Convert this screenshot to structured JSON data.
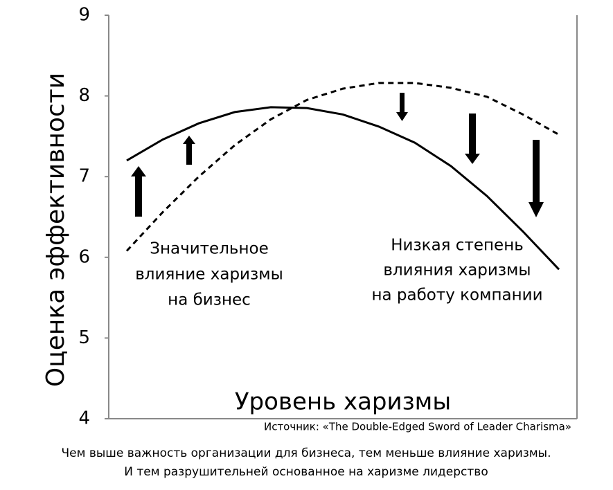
{
  "chart_data": {
    "type": "line",
    "ylabel": "Оценка эффективности",
    "xlabel": "Уровень харизмы",
    "categories": [
      null,
      null,
      null,
      null,
      null,
      null,
      null,
      null,
      null,
      null,
      null,
      null,
      null
    ],
    "series": [
      {
        "name": "Значительное влияние харизмы на бизнес",
        "color": "#000000",
        "dash": "solid",
        "values": [
          7.2,
          7.46,
          7.66,
          7.8,
          7.86,
          7.85,
          7.77,
          7.62,
          7.42,
          7.13,
          6.76,
          6.32,
          5.85
        ]
      },
      {
        "name": "Низкая степень влияния харизмы на работу компании",
        "color": "#000000",
        "dash": "dashed",
        "values": [
          6.08,
          6.56,
          7.0,
          7.39,
          7.71,
          7.95,
          8.09,
          8.16,
          8.16,
          8.1,
          7.99,
          7.77,
          7.52
        ]
      }
    ],
    "annotations": [
      "Значительное",
      "влияние харизмы",
      "на бизнес",
      "Низкая степень",
      "влияния харизмы",
      "на работу компании"
    ],
    "source": "Источник: «The Double-Edged Sword of Leader Charisma»",
    "caption": [
      "Чем выше важность организации для бизнеса, тем меньше влияние харизмы.",
      "И тем разрушительней основанное на харизме лидерство"
    ],
    "ylim": [
      4,
      9
    ],
    "yticks": [
      4,
      5,
      6,
      7,
      8,
      9
    ]
  }
}
